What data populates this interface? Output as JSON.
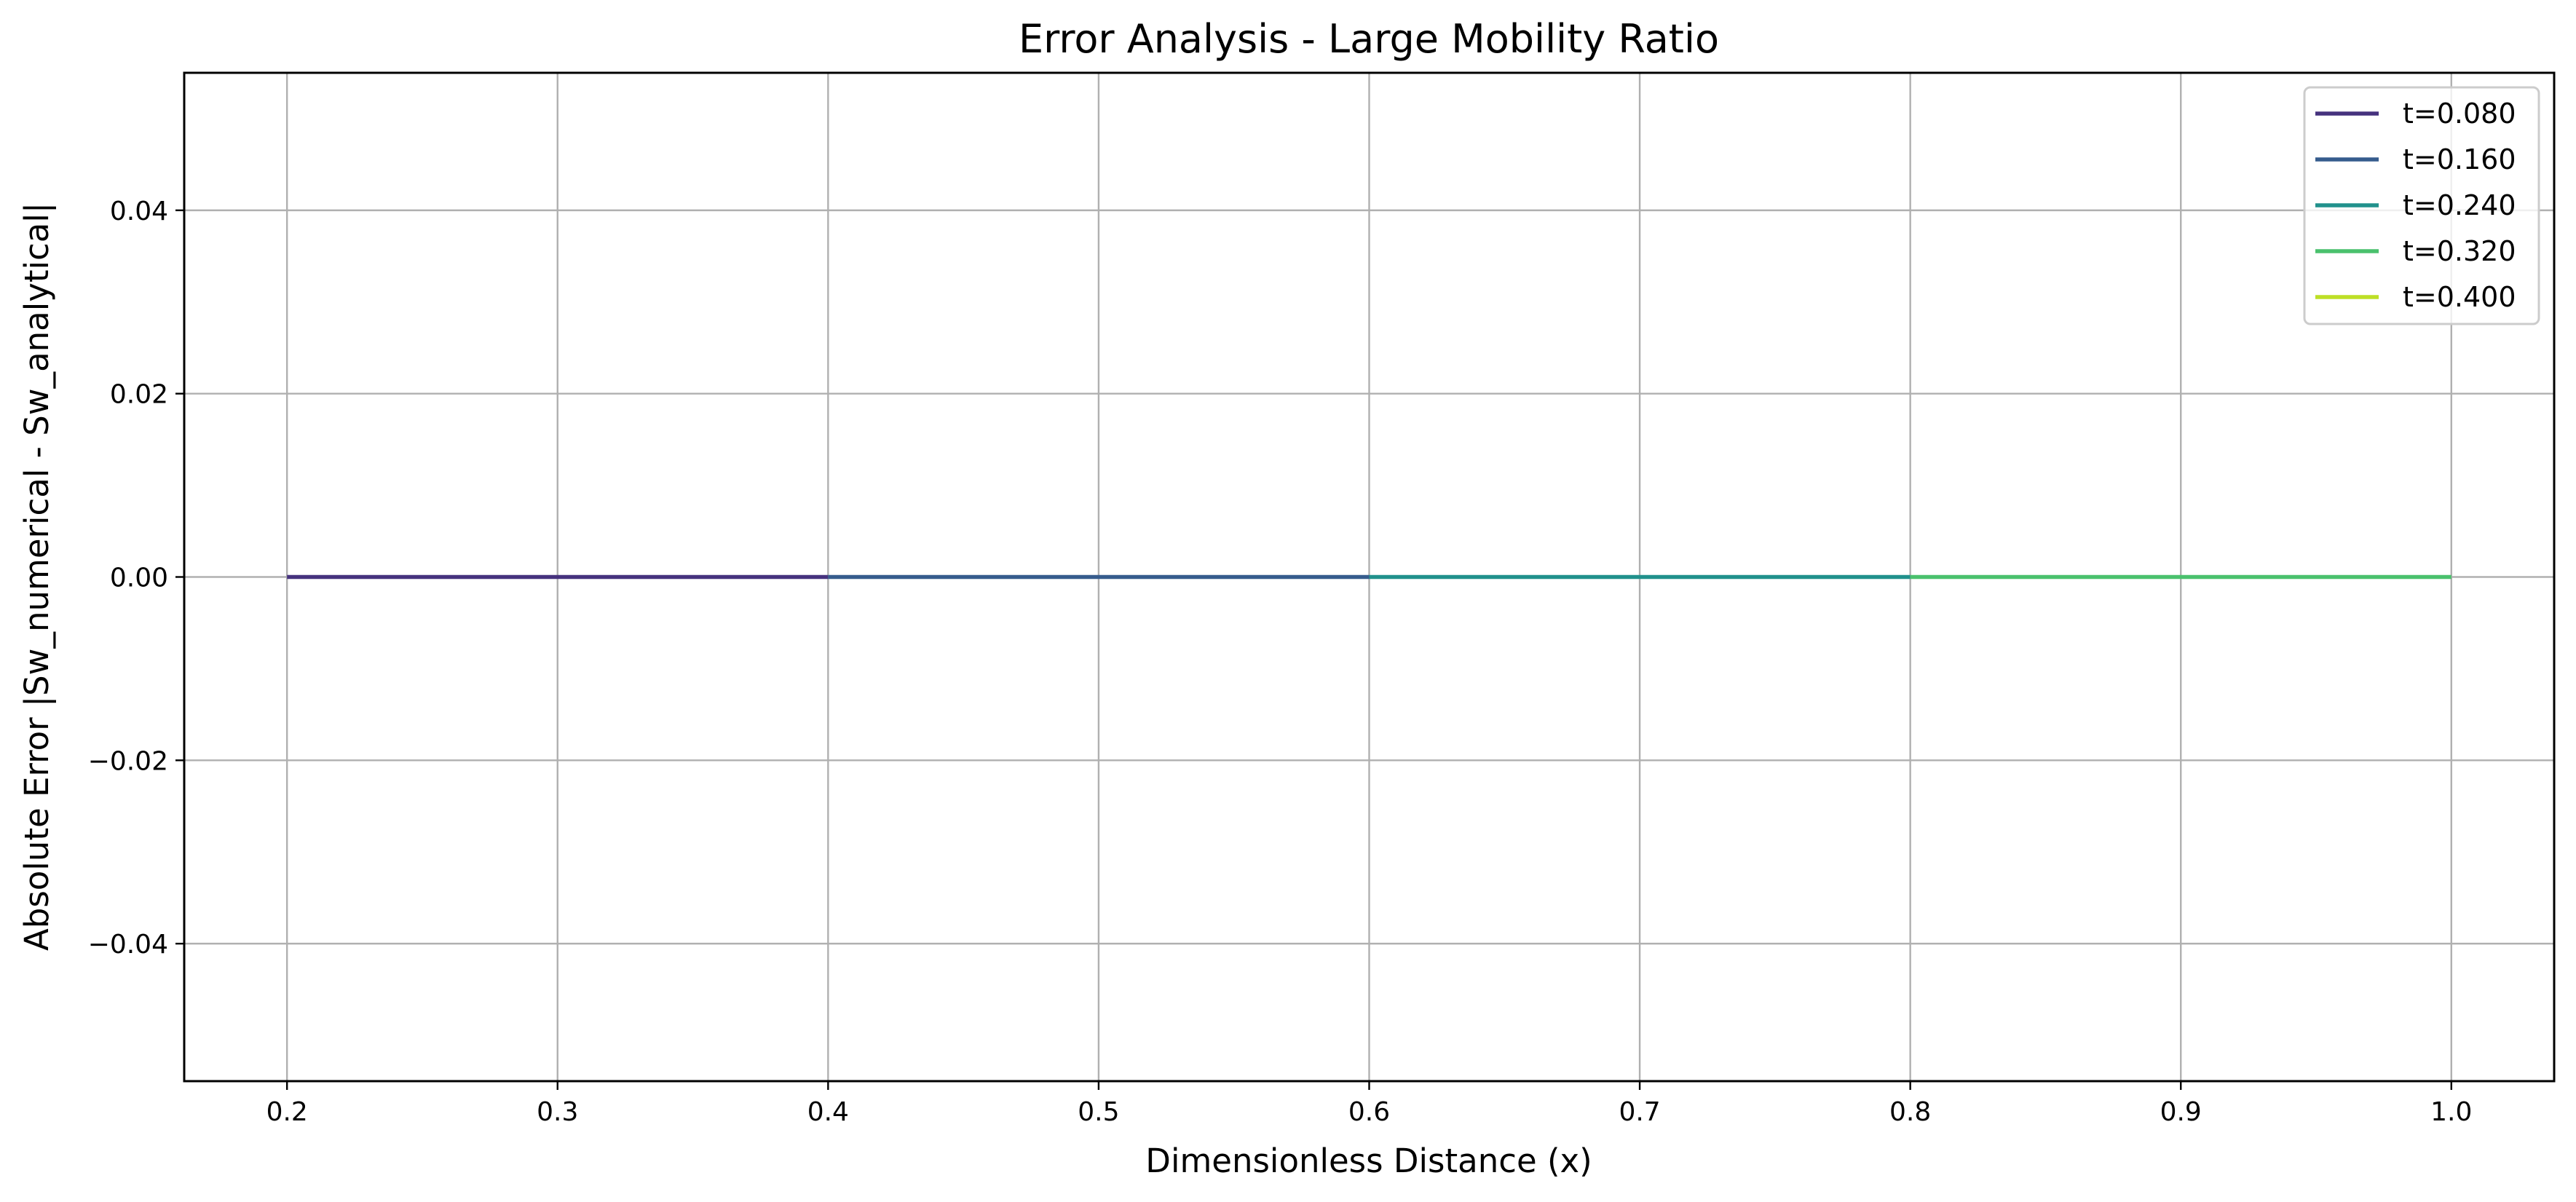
{
  "chart_data": {
    "type": "line",
    "title": "Error Analysis - Large Mobility Ratio",
    "xlabel": "Dimensionless Distance (x)",
    "ylabel": "Absolute Error |Sw_numerical - Sw_analytical|",
    "xlim": [
      0.162,
      1.038
    ],
    "ylim": [
      -0.055,
      0.055
    ],
    "x_ticks": [
      {
        "value": 0.2,
        "label": "0.2"
      },
      {
        "value": 0.3,
        "label": "0.3"
      },
      {
        "value": 0.4,
        "label": "0.4"
      },
      {
        "value": 0.5,
        "label": "0.5"
      },
      {
        "value": 0.6,
        "label": "0.6"
      },
      {
        "value": 0.7,
        "label": "0.7"
      },
      {
        "value": 0.8,
        "label": "0.8"
      },
      {
        "value": 0.9,
        "label": "0.9"
      },
      {
        "value": 1.0,
        "label": "1.0"
      }
    ],
    "y_ticks": [
      {
        "value": 0.04,
        "label": "0.04"
      },
      {
        "value": 0.02,
        "label": "0.02"
      },
      {
        "value": 0.0,
        "label": "0.00"
      },
      {
        "value": -0.02,
        "label": "−0.02"
      },
      {
        "value": -0.04,
        "label": "−0.04"
      }
    ],
    "grid": true,
    "legend_position": "top-right",
    "series": [
      {
        "name": "t=0.080",
        "color": "#46327e",
        "x": [
          0.2,
          0.4
        ],
        "y": [
          0.0,
          0.0
        ]
      },
      {
        "name": "t=0.160",
        "color": "#365c8d",
        "x": [
          0.4,
          0.6
        ],
        "y": [
          0.0,
          0.0
        ]
      },
      {
        "name": "t=0.240",
        "color": "#21918c",
        "x": [
          0.6,
          0.8
        ],
        "y": [
          0.0,
          0.0
        ]
      },
      {
        "name": "t=0.320",
        "color": "#4ac16d",
        "x": [
          0.8,
          1.0
        ],
        "y": [
          0.0,
          0.0
        ]
      },
      {
        "name": "t=0.400",
        "color": "#bddf26",
        "x": [],
        "y": []
      }
    ]
  }
}
